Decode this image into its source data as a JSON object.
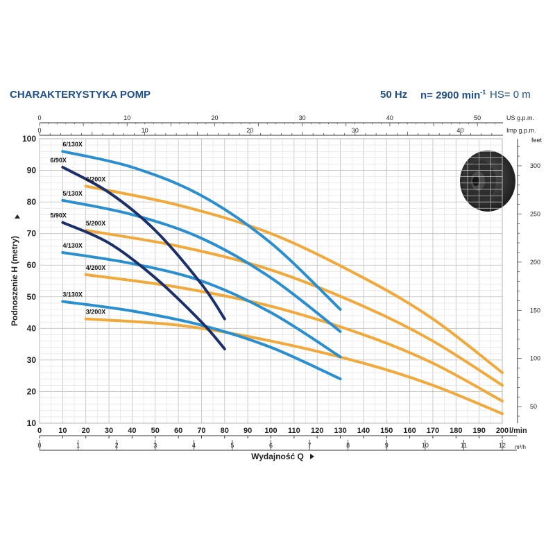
{
  "header": {
    "title": "CHARAKTERYSTYKA POMP",
    "frequency": "50 Hz",
    "speed": "n= 2900 min",
    "speed_exp": "-1",
    "suction": "HS= 0 m"
  },
  "chart_data": {
    "type": "line",
    "ylabel": "Podnoszenie H  (metry)",
    "xlabel": "Wydajność Q",
    "ylim": [
      10,
      100
    ],
    "xlim": [
      0,
      200
    ],
    "grid": true,
    "left_ticks": [
      10,
      20,
      30,
      40,
      50,
      60,
      70,
      80,
      90,
      100
    ],
    "bottom_ticks": [
      0,
      10,
      20,
      30,
      40,
      50,
      60,
      70,
      80,
      90,
      100,
      110,
      120,
      130,
      140,
      150,
      160,
      170,
      180,
      190,
      200
    ],
    "bottom_unit": "l/min",
    "m3h_ticks": [
      0,
      1,
      2,
      3,
      4,
      5,
      6,
      7,
      8,
      9,
      10,
      11,
      12
    ],
    "m3h_unit": "m³/h",
    "us_gpm_ticks": [
      0,
      10,
      20,
      30,
      40,
      50
    ],
    "us_gpm_unit": "US g.p.m.",
    "imp_gpm_ticks": [
      0,
      10,
      20,
      30,
      40
    ],
    "imp_gpm_unit": "Imp g.p.m.",
    "feet_ticks": [
      50,
      100,
      150,
      200,
      250,
      300
    ],
    "feet_unit": "feet",
    "series": [
      {
        "name": "6/130X",
        "color": "#2a8fd0",
        "x": [
          10,
          40,
          70,
          100,
          130
        ],
        "y": [
          96,
          91,
          82,
          67,
          46
        ]
      },
      {
        "name": "5/130X",
        "color": "#2a8fd0",
        "x": [
          10,
          40,
          70,
          100,
          130
        ],
        "y": [
          80.5,
          76,
          68.5,
          56,
          39
        ]
      },
      {
        "name": "4/130X",
        "color": "#2a8fd0",
        "x": [
          10,
          40,
          70,
          100,
          130
        ],
        "y": [
          64,
          60.5,
          55,
          45,
          31
        ]
      },
      {
        "name": "3/130X",
        "color": "#2a8fd0",
        "x": [
          10,
          40,
          70,
          100,
          130
        ],
        "y": [
          48.5,
          45.5,
          41,
          34,
          24
        ]
      },
      {
        "name": "6/90X",
        "color": "#1b2f6b",
        "x": [
          10,
          30,
          50,
          70,
          80
        ],
        "y": [
          91,
          83,
          71,
          54,
          43
        ]
      },
      {
        "name": "5/90X",
        "color": "#1b2f6b",
        "x": [
          10,
          30,
          50,
          70,
          80
        ],
        "y": [
          73.5,
          67,
          56,
          42,
          33.5
        ]
      },
      {
        "name": "6/200X",
        "color": "#f2a93b",
        "x": [
          20,
          60,
          100,
          140,
          170,
          200
        ],
        "y": [
          85,
          79,
          70,
          56,
          43,
          26
        ]
      },
      {
        "name": "5/200X",
        "color": "#f2a93b",
        "x": [
          20,
          60,
          100,
          140,
          170,
          200
        ],
        "y": [
          71,
          66,
          58.5,
          47,
          36,
          22
        ]
      },
      {
        "name": "4/200X",
        "color": "#f2a93b",
        "x": [
          20,
          60,
          100,
          140,
          170,
          200
        ],
        "y": [
          57,
          53,
          47,
          38,
          29,
          17
        ]
      },
      {
        "name": "3/200X",
        "color": "#f2a93b",
        "x": [
          20,
          60,
          100,
          140,
          170,
          200
        ],
        "y": [
          43,
          41,
          36,
          29,
          22,
          13
        ]
      }
    ]
  }
}
